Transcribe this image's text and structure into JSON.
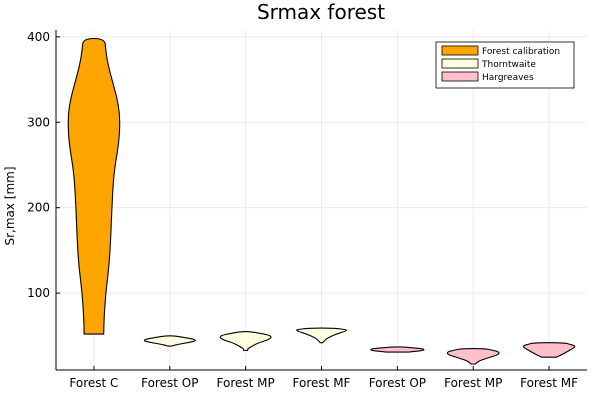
{
  "chart_data": {
    "type": "violin",
    "title": "Srmax forest",
    "xlabel": "",
    "ylabel": "Sr,max [mm]",
    "ylim": [
      10,
      408
    ],
    "yticks": [
      100,
      200,
      300,
      400
    ],
    "grid": true,
    "legend_position": "top-right",
    "categories": [
      "Forest C",
      "Forest OP",
      "Forest MP",
      "Forest MF",
      "Forest OP",
      "Forest MP",
      "Forest MF"
    ],
    "series": [
      {
        "name": "Forest calibration",
        "color": "#FFA500",
        "categories_index": [
          0
        ],
        "violins": [
          {
            "y": [
              52,
              70,
              100,
              130,
              160,
              200,
              240,
              270,
              290,
              310,
              330,
              350,
              370,
              385,
              398
            ],
            "w": [
              0.3,
              0.31,
              0.36,
              0.46,
              0.51,
              0.55,
              0.61,
              0.74,
              0.79,
              0.79,
              0.7,
              0.55,
              0.42,
              0.36,
              0.33
            ]
          }
        ]
      },
      {
        "name": "Thorntwaite",
        "color": "#FFFFE0",
        "categories_index": [
          1,
          2,
          3
        ],
        "violins": [
          {
            "y": [
              38,
              40,
              42,
              44,
              46,
              48,
              50
            ],
            "w": [
              0.05,
              0.25,
              0.55,
              0.8,
              0.75,
              0.45,
              0.15
            ]
          },
          {
            "y": [
              33,
              35,
              38,
              42,
              46,
              50,
              53,
              55
            ],
            "w": [
              0.06,
              0.07,
              0.2,
              0.4,
              0.75,
              0.8,
              0.45,
              0.12
            ]
          },
          {
            "y": [
              42,
              45,
              48,
              52,
              55,
              57,
              59
            ],
            "w": [
              0.04,
              0.1,
              0.22,
              0.45,
              0.7,
              0.8,
              0.4
            ]
          }
        ]
      },
      {
        "name": "Hargreaves",
        "color": "#FFC0CB",
        "categories_index": [
          4,
          5,
          6
        ],
        "violins": [
          {
            "y": [
              31,
              32,
              33,
              34,
              35,
              36,
              37
            ],
            "w": [
              0.35,
              0.6,
              0.8,
              0.82,
              0.75,
              0.45,
              0.2
            ]
          },
          {
            "y": [
              17,
              18,
              20,
              22,
              25,
              28,
              31,
              33,
              35
            ],
            "w": [
              0.06,
              0.1,
              0.15,
              0.28,
              0.52,
              0.78,
              0.8,
              0.62,
              0.35
            ]
          },
          {
            "y": [
              25,
              27,
              29,
              32,
              35,
              38,
              40,
              42
            ],
            "w": [
              0.22,
              0.34,
              0.44,
              0.58,
              0.72,
              0.82,
              0.65,
              0.45
            ]
          }
        ]
      }
    ]
  }
}
